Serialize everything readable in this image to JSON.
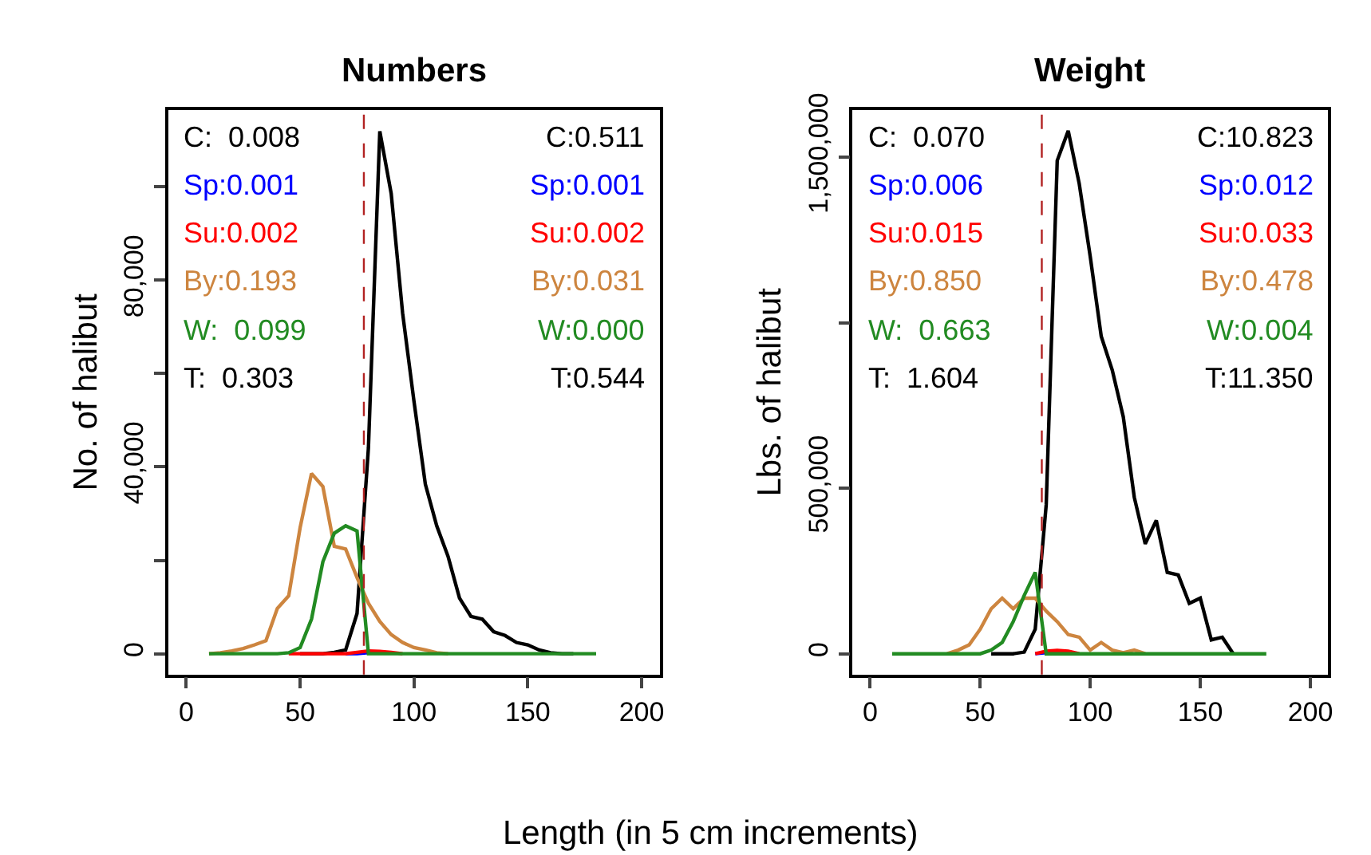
{
  "chart_data": [
    {
      "type": "line",
      "title": "Numbers",
      "xlabel": "Length (in 5 cm increments)",
      "ylabel": "No. of halibut",
      "x": [
        10,
        15,
        20,
        25,
        30,
        35,
        40,
        45,
        50,
        55,
        60,
        65,
        70,
        75,
        80,
        85,
        90,
        95,
        100,
        105,
        110,
        115,
        120,
        125,
        130,
        135,
        140,
        145,
        150,
        155,
        160,
        165,
        170,
        175,
        180
      ],
      "series": [
        {
          "color": "#000000",
          "values": [
            null,
            null,
            null,
            null,
            null,
            null,
            null,
            null,
            0,
            0,
            0,
            300,
            800,
            8600,
            44100,
            111900,
            98600,
            73000,
            54100,
            36300,
            27400,
            20800,
            11900,
            8000,
            7400,
            4700,
            3900,
            2400,
            1900,
            800,
            200,
            0,
            0,
            null,
            null
          ]
        },
        {
          "color": "#0000ff",
          "values": [
            null,
            null,
            null,
            null,
            null,
            null,
            null,
            null,
            null,
            null,
            null,
            null,
            0,
            0,
            200,
            null,
            null,
            null,
            null,
            null,
            null,
            null,
            null,
            null,
            null,
            null,
            null,
            null,
            null,
            null,
            null,
            null,
            null,
            null,
            null
          ]
        },
        {
          "color": "#ff0000",
          "values": [
            null,
            null,
            null,
            null,
            null,
            null,
            null,
            0,
            0,
            0,
            0,
            0,
            0,
            300,
            600,
            500,
            300,
            0,
            null,
            null,
            null,
            null,
            null,
            null,
            null,
            null,
            null,
            null,
            null,
            null,
            null,
            null,
            null,
            null,
            null
          ]
        },
        {
          "color": "#cd853f",
          "values": [
            0,
            200,
            600,
            1100,
            1900,
            2800,
            9700,
            12400,
            27000,
            38600,
            35800,
            23000,
            22400,
            16300,
            10800,
            6900,
            4100,
            2400,
            1300,
            800,
            200,
            0,
            null,
            null,
            null,
            null,
            null,
            null,
            null,
            null,
            null,
            null,
            null,
            null,
            null
          ]
        },
        {
          "color": "#228b22",
          "values": [
            0,
            0,
            0,
            0,
            0,
            0,
            0,
            200,
            1300,
            7400,
            19700,
            25800,
            27400,
            26300,
            0,
            0,
            0,
            0,
            0,
            0,
            0,
            0,
            0,
            0,
            0,
            0,
            0,
            0,
            0,
            0,
            0,
            0,
            0,
            0,
            0
          ]
        }
      ],
      "xlim": [
        -8,
        208
      ],
      "xticks": [
        0,
        50,
        100,
        150,
        200
      ],
      "ylim": [
        -4480,
        116480
      ],
      "yticks": [
        0,
        {
          "value": 20000,
          "label": null
        },
        {
          "value": 40000,
          "label": "40,000"
        },
        {
          "value": 60000,
          "label": null
        },
        {
          "value": 80000,
          "label": "80,000"
        },
        {
          "value": 100000,
          "label": null
        }
      ],
      "marker": "none",
      "line_style": "solid",
      "ref_lines": [
        {
          "axis": "x",
          "value": 78,
          "color": "#b22222",
          "line_style": "dashed"
        }
      ],
      "annotations": [
        "C:  0.008",
        "Sp:0.001",
        "Su:0.002",
        "By:0.193",
        "W:  0.099",
        "T:  0.303",
        "C:0.511",
        "Sp:0.001",
        "Su:0.002",
        "By:0.031",
        "W:0.000",
        "T:0.544"
      ]
    },
    {
      "type": "line",
      "title": "Weight",
      "ylabel": "Lbs. of halibut",
      "x": [
        10,
        15,
        20,
        25,
        30,
        35,
        40,
        45,
        50,
        55,
        60,
        65,
        70,
        75,
        80,
        85,
        90,
        95,
        100,
        105,
        110,
        115,
        120,
        125,
        130,
        135,
        140,
        145,
        150,
        155,
        160,
        165,
        170,
        175,
        180
      ],
      "series": [
        {
          "color": "#000000",
          "values": [
            null,
            null,
            null,
            null,
            null,
            null,
            null,
            null,
            null,
            0,
            0,
            0,
            5000,
            74000,
            450000,
            1490000,
            1580000,
            1420000,
            1200000,
            959000,
            857000,
            716000,
            473000,
            332000,
            403000,
            246000,
            238000,
            152000,
            168000,
            42000,
            50000,
            0,
            null,
            null,
            null
          ]
        },
        {
          "color": "#0000ff",
          "values": [
            null,
            null,
            null,
            null,
            null,
            null,
            null,
            null,
            null,
            null,
            null,
            null,
            null,
            0,
            3000,
            0,
            null,
            null,
            null,
            null,
            null,
            null,
            null,
            null,
            null,
            null,
            null,
            null,
            null,
            null,
            null,
            null,
            null,
            null,
            null
          ]
        },
        {
          "color": "#ff0000",
          "values": [
            null,
            null,
            null,
            null,
            null,
            null,
            null,
            null,
            null,
            null,
            null,
            null,
            null,
            0,
            8000,
            10000,
            8000,
            0,
            null,
            null,
            null,
            null,
            null,
            null,
            null,
            null,
            null,
            null,
            null,
            null,
            null,
            null,
            null,
            null,
            null
          ]
        },
        {
          "color": "#cd853f",
          "values": [
            null,
            null,
            null,
            null,
            null,
            0,
            11000,
            27000,
            74000,
            136000,
            168000,
            136000,
            168000,
            168000,
            129000,
            97000,
            58000,
            50000,
            11000,
            34000,
            11000,
            3000,
            11000,
            0,
            null,
            null,
            null,
            null,
            null,
            null,
            null,
            null,
            null,
            null,
            null
          ]
        },
        {
          "color": "#228b22",
          "values": [
            0,
            0,
            0,
            0,
            0,
            0,
            0,
            0,
            0,
            11000,
            34000,
            97000,
            176000,
            246000,
            0,
            0,
            0,
            0,
            0,
            0,
            0,
            0,
            0,
            0,
            0,
            0,
            0,
            0,
            0,
            0,
            0,
            0,
            0,
            0,
            0
          ]
        }
      ],
      "xlim": [
        -8,
        208
      ],
      "xticks": [
        0,
        50,
        100,
        150,
        200
      ],
      "ylim": [
        -63000,
        1643000
      ],
      "yticks": [
        0,
        {
          "value": 500000,
          "label": "500,000"
        },
        {
          "value": 1000000,
          "label": null
        },
        {
          "value": 1500000,
          "label": "1,500,000"
        }
      ],
      "marker": "none",
      "line_style": "solid",
      "ref_lines": [
        {
          "axis": "x",
          "value": 78,
          "color": "#b22222",
          "line_style": "dashed"
        }
      ],
      "annotations": [
        "C:  0.070",
        "Sp:0.006",
        "Su:0.015",
        "By:0.850",
        "W:  0.663",
        "T:  1.604",
        "C:10.823",
        "Sp:0.012",
        "Su:0.033",
        "By:0.478",
        "W:0.004",
        "T:11.350"
      ]
    }
  ]
}
